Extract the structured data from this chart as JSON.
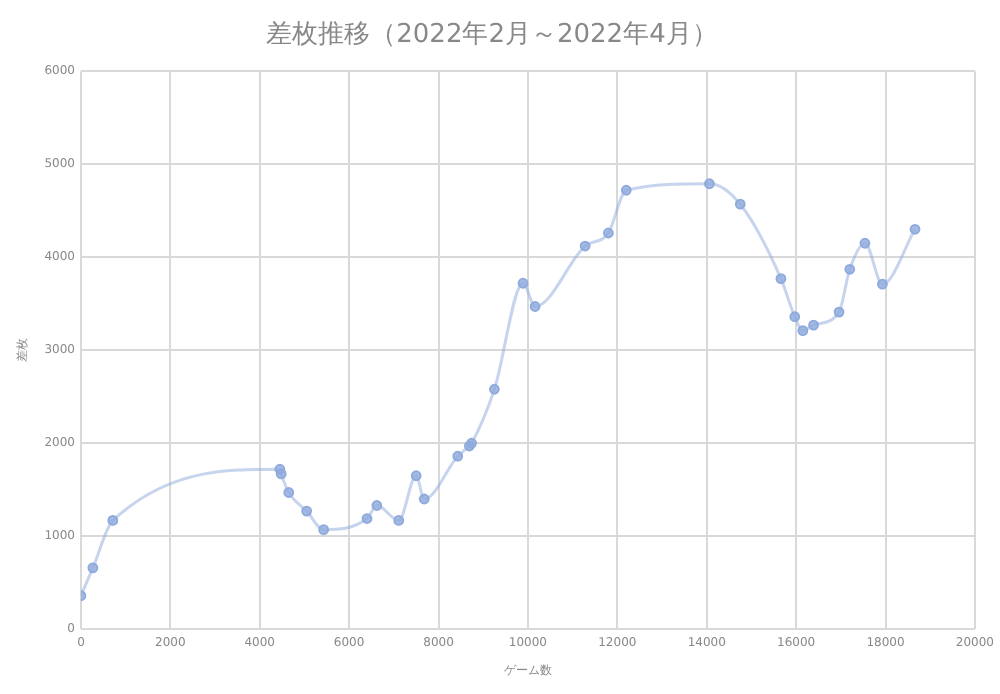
{
  "chart_data": {
    "type": "line",
    "title": "差枚推移（2022年2月～2022年4月）",
    "xlabel": "ゲーム数",
    "ylabel": "差枚",
    "x": [
      0,
      267,
      713,
      4450,
      4480,
      4650,
      5050,
      5430,
      6400,
      6620,
      7110,
      7500,
      7680,
      8430,
      8690,
      8740,
      9250,
      9890,
      10160,
      11280,
      11800,
      12200,
      14060,
      14750,
      15660,
      15970,
      16150,
      16390,
      16960,
      17200,
      17540,
      17930,
      18660
    ],
    "series": [
      {
        "color": "#8faadc",
        "values": [
          360,
          660,
          1170,
          1720,
          1670,
          1470,
          1270,
          1070,
          1190,
          1330,
          1170,
          1650,
          1400,
          1860,
          1970,
          2000,
          2580,
          3720,
          3470,
          4120,
          4260,
          4720,
          4790,
          4570,
          3770,
          3360,
          3210,
          3270,
          3410,
          3870,
          4150,
          3710,
          4300
        ]
      }
    ],
    "xlim": [
      0,
      20000
    ],
    "xticks": [
      0,
      2000,
      4000,
      6000,
      8000,
      10000,
      12000,
      14000,
      16000,
      18000,
      20000
    ],
    "ylim": [
      0,
      6000
    ],
    "yticks": [
      0,
      1000,
      2000,
      3000,
      4000,
      5000,
      6000
    ],
    "grid": true,
    "legend": false,
    "marker": "circle",
    "line_style": "solid"
  }
}
